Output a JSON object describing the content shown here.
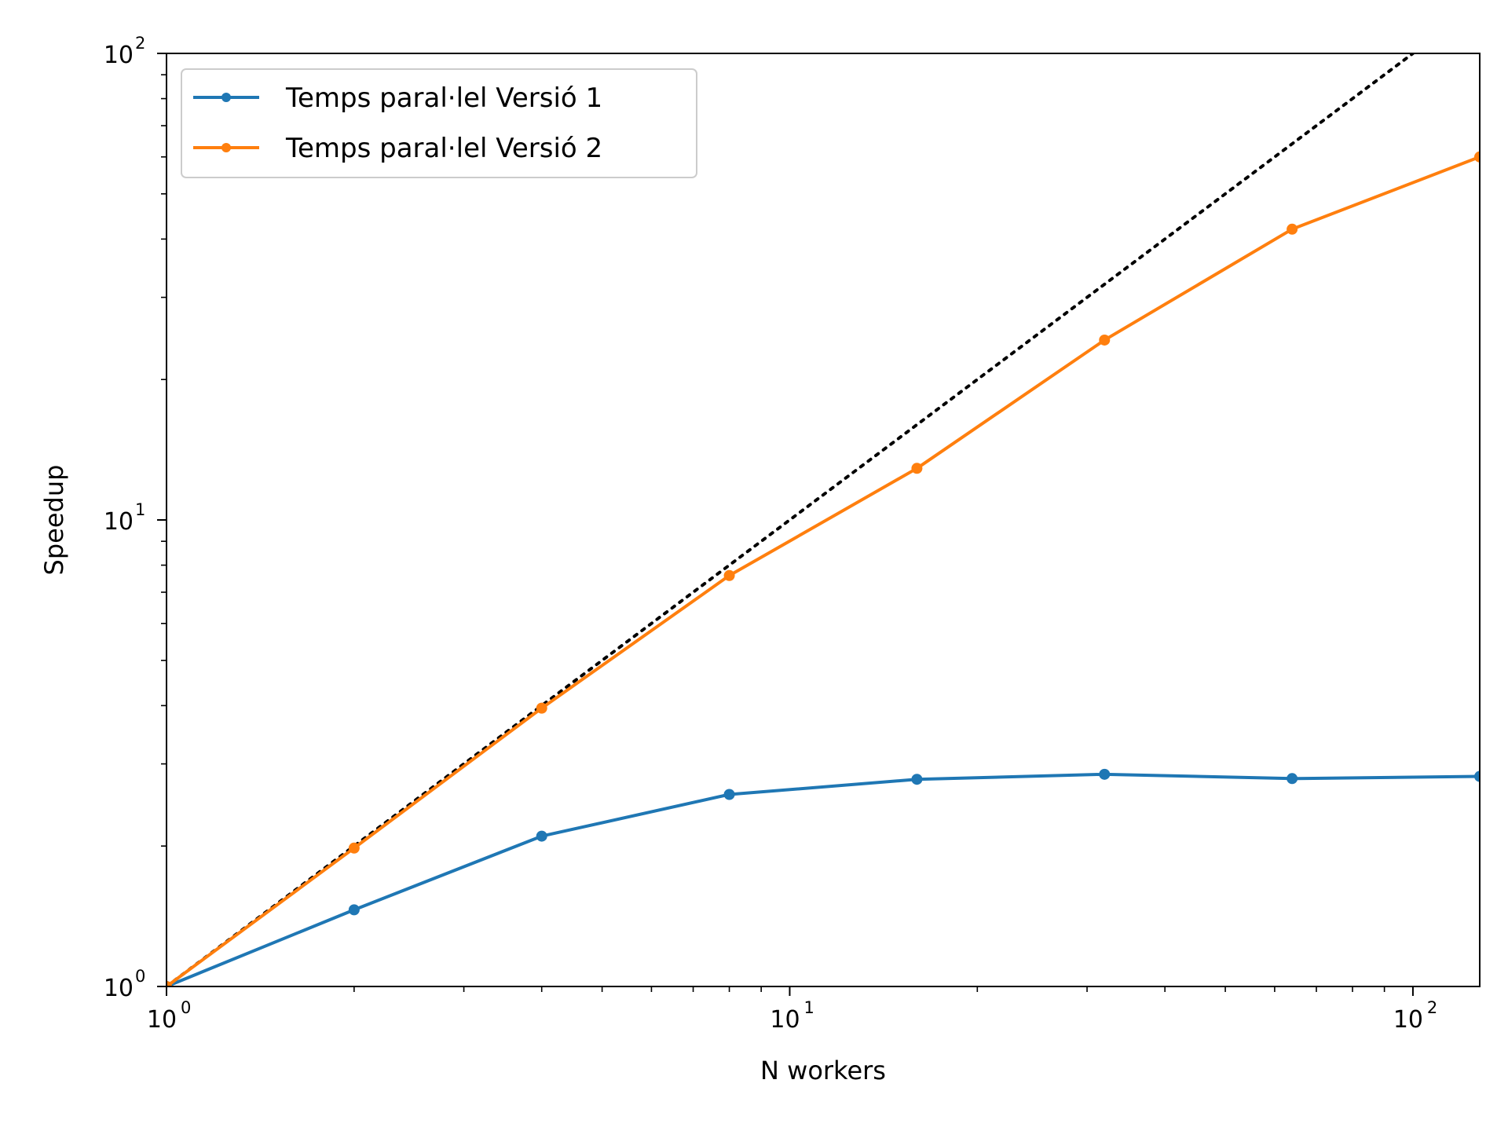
{
  "chart_data": {
    "type": "line",
    "title": "",
    "xlabel": "N workers",
    "ylabel": "Speedup",
    "xscale": "log",
    "yscale": "log",
    "xlim": [
      1,
      128
    ],
    "ylim": [
      1,
      100
    ],
    "x_ticks": [
      {
        "value": 1,
        "base": "10",
        "exp": "0"
      },
      {
        "value": 10,
        "base": "10",
        "exp": "1"
      },
      {
        "value": 100,
        "base": "10",
        "exp": "2"
      }
    ],
    "y_ticks": [
      {
        "value": 1,
        "base": "10",
        "exp": "0"
      },
      {
        "value": 10,
        "base": "10",
        "exp": "1"
      },
      {
        "value": 100,
        "base": "10",
        "exp": "2"
      }
    ],
    "legend_position": "top-left",
    "grid": false,
    "x": [
      1,
      2,
      4,
      8,
      16,
      32,
      64,
      128
    ],
    "series": [
      {
        "name": "Temps paral·lel Versió 1",
        "color": "#1f77b4",
        "marker": "circle",
        "values": [
          1.0,
          1.46,
          2.1,
          2.58,
          2.78,
          2.85,
          2.79,
          2.82
        ]
      },
      {
        "name": "Temps paral·lel Versió 2",
        "color": "#ff7f0e",
        "marker": "circle",
        "values": [
          1.0,
          1.98,
          3.95,
          7.6,
          12.9,
          24.3,
          42.0,
          60.0
        ]
      }
    ],
    "reference_line": {
      "style": "dotted",
      "color": "#000000",
      "x": [
        1,
        100
      ],
      "values": [
        1,
        100
      ]
    }
  }
}
